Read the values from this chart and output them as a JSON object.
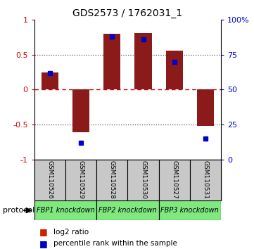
{
  "title": "GDS2573 / 1762031_1",
  "samples": [
    "GSM110526",
    "GSM110529",
    "GSM110528",
    "GSM110530",
    "GSM110527",
    "GSM110531"
  ],
  "log2_ratio": [
    0.25,
    -0.61,
    0.8,
    0.81,
    0.56,
    -0.52
  ],
  "percentile_rank": [
    62,
    12,
    88,
    86,
    70,
    15
  ],
  "bar_color": "#8B1A1A",
  "dot_color": "#0000CD",
  "ylim_left": [
    -1,
    1
  ],
  "ylim_right": [
    0,
    100
  ],
  "yticks_left": [
    -1,
    -0.5,
    0,
    0.5,
    1
  ],
  "yticks_right": [
    0,
    25,
    50,
    75,
    100
  ],
  "ytick_labels_left": [
    "-1",
    "-0.5",
    "0",
    "0.5",
    "1"
  ],
  "ytick_labels_right": [
    "0",
    "25",
    "50",
    "75",
    "100%"
  ],
  "hline_dashed_color": "#CC0000",
  "hline_dotted_color": "#555555",
  "groups": [
    {
      "label": "FBP1 knockdown",
      "indices": [
        0,
        1
      ],
      "color": "#7FE87F"
    },
    {
      "label": "FBP2 knockdown",
      "indices": [
        2,
        3
      ],
      "color": "#7FE87F"
    },
    {
      "label": "FBP3 knockdown",
      "indices": [
        4,
        5
      ],
      "color": "#7FE87F"
    }
  ],
  "legend_log2_label": "log2 ratio",
  "legend_pct_label": "percentile rank within the sample",
  "protocol_label": "protocol",
  "sample_box_color": "#C8C8C8",
  "legend_red_color": "#CC2200",
  "legend_blue_color": "#0000CC"
}
